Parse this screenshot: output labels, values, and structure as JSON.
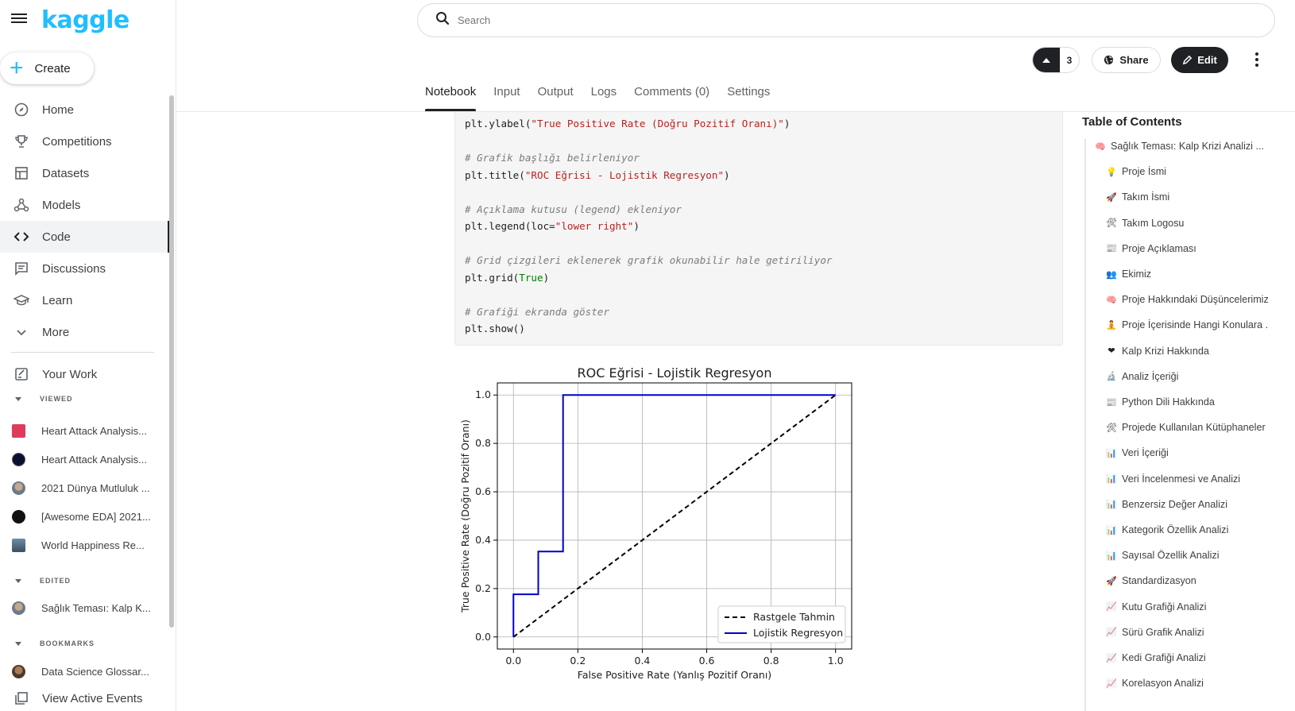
{
  "app": {
    "logo": "kaggle",
    "create_label": "Create"
  },
  "nav": [
    {
      "label": "Home",
      "icon": "compass-icon"
    },
    {
      "label": "Competitions",
      "icon": "trophy-icon"
    },
    {
      "label": "Datasets",
      "icon": "table-icon"
    },
    {
      "label": "Models",
      "icon": "models-icon"
    },
    {
      "label": "Code",
      "icon": "code-icon",
      "active": true
    },
    {
      "label": "Discussions",
      "icon": "chat-icon"
    },
    {
      "label": "Learn",
      "icon": "graduation-cap-icon"
    },
    {
      "label": "More",
      "icon": "chevron-down-icon"
    }
  ],
  "your_work": "Your Work",
  "sections": {
    "viewed": "VIEWED",
    "edited": "EDITED",
    "bookmarks": "BOOKMARKS"
  },
  "viewed_items": [
    "Heart Attack Analysis...",
    "Heart Attack Analysis...",
    "2021 Dünya Mutluluk ...",
    "[Awesome EDA] 2021...",
    "World Happiness Re..."
  ],
  "edited_items": [
    "Sağlık Teması: Kalp K..."
  ],
  "bookmark_items": [
    "Data Science Glossar..."
  ],
  "view_events": "View Active Events",
  "search": {
    "placeholder": "Search"
  },
  "actions": {
    "votes": "3",
    "share": "Share",
    "edit": "Edit"
  },
  "tabs": [
    "Notebook",
    "Input",
    "Output",
    "Logs",
    "Comments (0)",
    "Settings"
  ],
  "code_lines": [
    [
      {
        "c": "",
        "t": "plt.ylabel("
      },
      {
        "c": "st",
        "t": "\"True Positive Rate (Doğru Pozitif Oranı)\""
      },
      {
        "c": "",
        "t": ")"
      }
    ],
    [],
    [
      {
        "c": "cm",
        "t": "# Grafik başlığı belirleniyor"
      }
    ],
    [
      {
        "c": "",
        "t": "plt.title("
      },
      {
        "c": "st",
        "t": "\"ROC Eğrisi - Lojistik Regresyon\""
      },
      {
        "c": "",
        "t": ")"
      }
    ],
    [],
    [
      {
        "c": "cm",
        "t": "# Açıklama kutusu (legend) ekleniyor"
      }
    ],
    [
      {
        "c": "",
        "t": "plt.legend(loc="
      },
      {
        "c": "st",
        "t": "\"lower right\""
      },
      {
        "c": "",
        "t": ")"
      }
    ],
    [],
    [
      {
        "c": "cm",
        "t": "# Grid çizgileri eklenerek grafik okunabilir hale getiriliyor"
      }
    ],
    [
      {
        "c": "",
        "t": "plt.grid("
      },
      {
        "c": "kw",
        "t": "True"
      },
      {
        "c": "",
        "t": ")"
      }
    ],
    [],
    [
      {
        "c": "cm",
        "t": "# Grafiği ekranda göster"
      }
    ],
    [
      {
        "c": "",
        "t": "plt.show()"
      }
    ]
  ],
  "chart_data": {
    "type": "line",
    "title": "ROC Eğrisi - Lojistik Regresyon",
    "xlabel": "False Positive Rate (Yanlış Pozitif Oranı)",
    "ylabel": "True Positive Rate (Doğru Pozitif Oranı)",
    "xlim": [
      -0.05,
      1.05
    ],
    "ylim": [
      -0.05,
      1.05
    ],
    "xticks": [
      "0.0",
      "0.2",
      "0.4",
      "0.6",
      "0.8",
      "1.0"
    ],
    "yticks": [
      "0.0",
      "0.2",
      "0.4",
      "0.6",
      "0.8",
      "1.0"
    ],
    "grid": true,
    "legend_position": "lower right",
    "series": [
      {
        "name": "Rastgele Tahmin",
        "color": "#000000",
        "style": "dashed",
        "x": [
          0,
          1
        ],
        "y": [
          0,
          1
        ]
      },
      {
        "name": "Lojistik Regresyon",
        "color": "#0000cc",
        "style": "solid",
        "x": [
          0,
          0,
          0.077,
          0.077,
          0.154,
          0.154,
          1.0
        ],
        "y": [
          0,
          0.176,
          0.176,
          0.353,
          0.353,
          1.0,
          1.0
        ]
      }
    ]
  },
  "toc": {
    "title": "Table of Contents",
    "items": [
      {
        "e": "🧠",
        "t": "Sağlık Teması: Kalp Krizi Analizi ...",
        "sub": false
      },
      {
        "e": "💡",
        "t": "Proje İsmi",
        "sub": true
      },
      {
        "e": "🚀",
        "t": "Takım İsmi",
        "sub": true
      },
      {
        "e": "🛠",
        "t": "Takım Logosu",
        "sub": true
      },
      {
        "e": "📰",
        "t": "Proje Açıklaması",
        "sub": true
      },
      {
        "e": "👥",
        "t": "Ekimiz",
        "sub": true
      },
      {
        "e": "🧠",
        "t": "Proje Hakkındaki Düşüncelerimiz",
        "sub": true
      },
      {
        "e": "🧘",
        "t": "Proje İçerisinde Hangi Konulara .",
        "sub": true
      },
      {
        "e": "❤",
        "t": "Kalp Krizi Hakkında",
        "sub": true
      },
      {
        "e": "🔬",
        "t": "Analiz İçeriği",
        "sub": true
      },
      {
        "e": "📰",
        "t": "Python Dili Hakkında",
        "sub": true
      },
      {
        "e": "🛠",
        "t": "Projede Kullanılan Kütüphaneler",
        "sub": true
      },
      {
        "e": "📊",
        "t": "Veri İçeriği",
        "sub": true
      },
      {
        "e": "📊",
        "t": "Veri İncelenmesi ve Analizi",
        "sub": true
      },
      {
        "e": "📊",
        "t": "Benzersiz Değer Analizi",
        "sub": true
      },
      {
        "e": "📊",
        "t": "Kategorik Özellik Analizi",
        "sub": true
      },
      {
        "e": "📊",
        "t": "Sayısal Özellik Analizi",
        "sub": true
      },
      {
        "e": "🚀",
        "t": "Standardizasyon",
        "sub": true
      },
      {
        "e": "📈",
        "t": "Kutu Grafiği Analizi",
        "sub": true
      },
      {
        "e": "📈",
        "t": "Sürü Grafik Analizi",
        "sub": true
      },
      {
        "e": "📈",
        "t": "Kedi Grafiği Analizi",
        "sub": true
      },
      {
        "e": "📈",
        "t": "Korelasyon Analizi",
        "sub": true
      }
    ]
  },
  "colors": {
    "accent": "#20beff",
    "roc_line": "#0000cc"
  }
}
